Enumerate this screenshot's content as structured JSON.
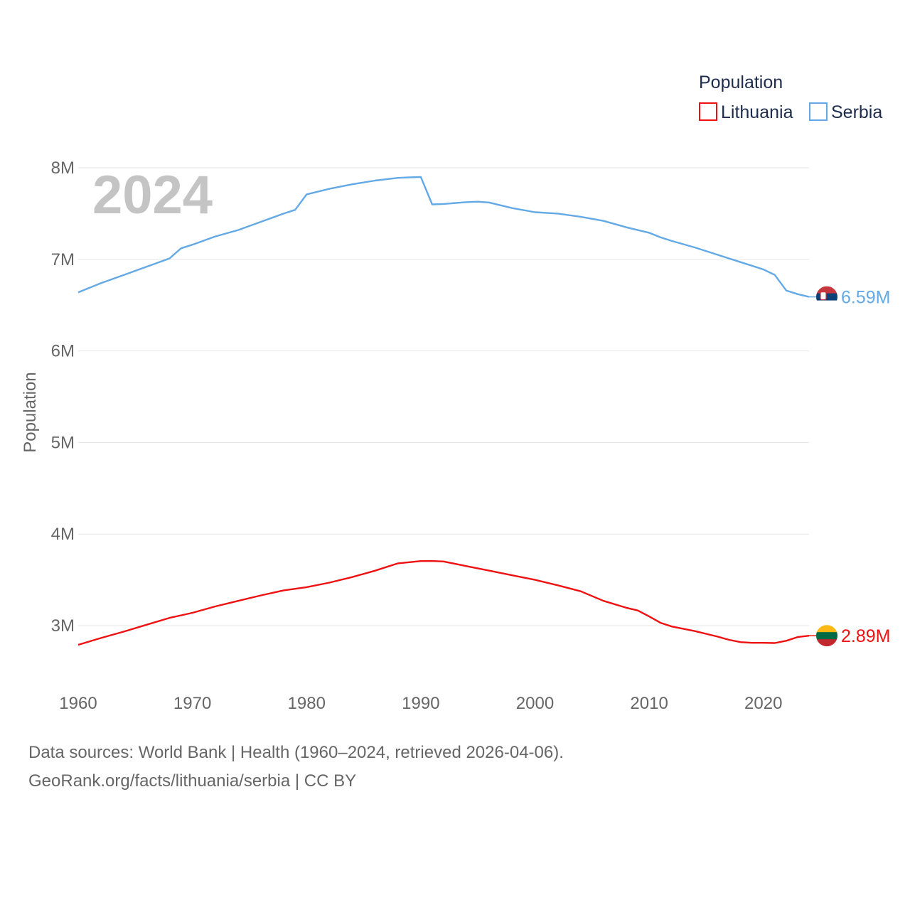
{
  "chart_data": {
    "type": "line",
    "title": "Population",
    "xlabel": "",
    "ylabel": "Population",
    "current_year": "2024",
    "xlim": [
      1960,
      2024
    ],
    "ylim": [
      2500000,
      8250000
    ],
    "x_ticks": [
      1960,
      1970,
      1980,
      1990,
      2000,
      2010,
      2020
    ],
    "y_ticks": [
      {
        "value": 3000000,
        "label": "3M"
      },
      {
        "value": 4000000,
        "label": "4M"
      },
      {
        "value": 5000000,
        "label": "5M"
      },
      {
        "value": 6000000,
        "label": "6M"
      },
      {
        "value": 7000000,
        "label": "7M"
      },
      {
        "value": 8000000,
        "label": "8M"
      }
    ],
    "legend": {
      "title": "Population",
      "position": "top-right"
    },
    "series": [
      {
        "name": "Lithuania",
        "color": "#ee1111",
        "end_label": "2.89M",
        "flag": "lithuania-flag",
        "x": [
          1960,
          1962,
          1964,
          1966,
          1968,
          1970,
          1972,
          1974,
          1976,
          1978,
          1980,
          1982,
          1984,
          1986,
          1988,
          1990,
          1991,
          1992,
          1994,
          1996,
          1998,
          2000,
          2002,
          2004,
          2006,
          2008,
          2009,
          2010,
          2011,
          2012,
          2014,
          2016,
          2017,
          2018,
          2019,
          2020,
          2021,
          2022,
          2023,
          2024
        ],
        "values": [
          2790000,
          2865000,
          2935000,
          3010000,
          3085000,
          3140000,
          3210000,
          3270000,
          3330000,
          3385000,
          3420000,
          3470000,
          3530000,
          3600000,
          3680000,
          3705000,
          3706000,
          3700000,
          3650000,
          3600000,
          3550000,
          3500000,
          3440000,
          3375000,
          3270000,
          3195000,
          3165000,
          3100000,
          3030000,
          2990000,
          2940000,
          2880000,
          2845000,
          2820000,
          2812000,
          2812000,
          2810000,
          2835000,
          2875000,
          2890000
        ]
      },
      {
        "name": "Serbia",
        "color": "#63a9e6",
        "end_label": "6.59M",
        "flag": "serbia-flag",
        "x": [
          1960,
          1962,
          1964,
          1966,
          1968,
          1969,
          1970,
          1972,
          1974,
          1976,
          1978,
          1979,
          1980,
          1982,
          1984,
          1986,
          1988,
          1989,
          1990,
          1991,
          1992,
          1994,
          1995,
          1996,
          1998,
          2000,
          2002,
          2004,
          2006,
          2008,
          2010,
          2011,
          2012,
          2014,
          2016,
          2018,
          2019,
          2020,
          2021,
          2022,
          2023,
          2024
        ],
        "values": [
          6640000,
          6740000,
          6830000,
          6920000,
          7010000,
          7120000,
          7160000,
          7250000,
          7320000,
          7410000,
          7500000,
          7540000,
          7710000,
          7770000,
          7820000,
          7860000,
          7890000,
          7895000,
          7900000,
          7600000,
          7605000,
          7625000,
          7630000,
          7620000,
          7560000,
          7515000,
          7500000,
          7465000,
          7420000,
          7350000,
          7290000,
          7240000,
          7200000,
          7130000,
          7050000,
          6970000,
          6930000,
          6890000,
          6830000,
          6660000,
          6620000,
          6590000
        ]
      }
    ]
  },
  "footer": {
    "line1": "Data sources: World Bank | Health (1960–2024, retrieved 2026-04-06).",
    "line2": "GeoRank.org/facts/lithuania/serbia | CC BY"
  }
}
